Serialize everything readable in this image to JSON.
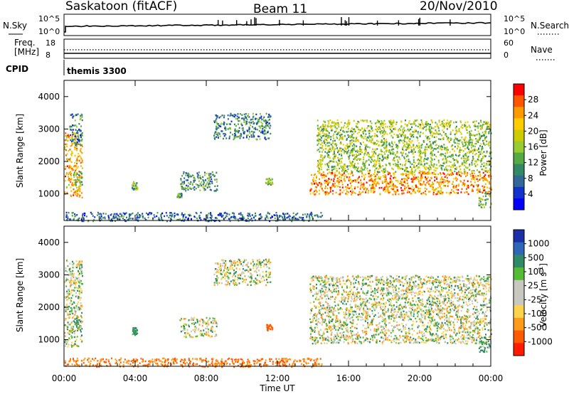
{
  "header": {
    "station": "Saskatoon (fitACF)",
    "beam": "Beam 11",
    "date": "20/Nov/2010"
  },
  "panels": {
    "nsky": {
      "label": "N.Sky",
      "ytick_top": "10^5",
      "ytick_bottom": "10^0",
      "right_top": "10^5",
      "right_bottom": "10^0"
    },
    "nsearch": {
      "label": "N.Search",
      "line_style": "dotted"
    },
    "freq": {
      "label_line1": "Freq.",
      "label_line2": "[MHz]",
      "ytick_top": "18",
      "ytick_bottom": "8",
      "right_top": "60",
      "right_bottom": "0"
    },
    "nave": {
      "label": "Nave",
      "line_style": "dotted"
    },
    "cpid": {
      "label": "CPID",
      "value": "themis 3300"
    }
  },
  "power_panel": {
    "ylabel": "Slant Range [km]",
    "yticks": [
      "4000",
      "3000",
      "2000",
      "1000"
    ],
    "colorbar_label": "Power [dB]",
    "colorbar_ticks": [
      "28",
      "24",
      "20",
      "16",
      "12",
      "8",
      "4"
    ],
    "colorbar_colors": [
      "#ff0000",
      "#ff5500",
      "#ff9900",
      "#ffcc00",
      "#cccc00",
      "#99cc33",
      "#55aa44",
      "#338866",
      "#336699",
      "#1133cc",
      "#0000ff"
    ]
  },
  "velocity_panel": {
    "ylabel": "Slant Range [km]",
    "yticks": [
      "4000",
      "3000",
      "2000",
      "1000"
    ],
    "colorbar_label": "Velocity [m s",
    "colorbar_label_sup": "-1",
    "colorbar_label_end": "]",
    "colorbar_ticks": [
      "1000",
      "500",
      "100",
      "25",
      "-25",
      "-100",
      "-500",
      "-1000"
    ],
    "colorbar_colors": [
      "#1a2fa8",
      "#2f67b8",
      "#2f8a66",
      "#55bb33",
      "#c8c8c0",
      "#c8c8c0",
      "#ffd24d",
      "#ff9a1a",
      "#ff5a00",
      "#ff1a00"
    ]
  },
  "xaxis": {
    "ticks": [
      "00:00",
      "04:00",
      "08:00",
      "12:00",
      "16:00",
      "20:00",
      "00:00"
    ],
    "label": "Time UT"
  },
  "chart_data": {
    "type": "heatmap",
    "title": "Saskatoon (fitACF)",
    "xlabel": "Time UT",
    "ylabel": "Slant Range [km]",
    "xlim": [
      0,
      24
    ],
    "ylim": [
      180,
      4500
    ],
    "x_unit": "hours UT",
    "series": [
      {
        "name": "Power [dB]",
        "blobs": [
          {
            "t0": 0.0,
            "t1": 1.0,
            "r0": 900,
            "r1": 2900,
            "level": 22
          },
          {
            "t0": 0.3,
            "t1": 1.0,
            "r0": 2500,
            "r1": 3500,
            "level": 8
          },
          {
            "t0": 0.5,
            "t1": 1.0,
            "r0": 1300,
            "r1": 1700,
            "level": 12
          },
          {
            "t0": 3.8,
            "t1": 4.1,
            "r0": 1150,
            "r1": 1400,
            "level": 12
          },
          {
            "t0": 6.3,
            "t1": 6.6,
            "r0": 900,
            "r1": 1050,
            "level": 10
          },
          {
            "t0": 6.5,
            "t1": 8.6,
            "r0": 1100,
            "r1": 1700,
            "level": 10
          },
          {
            "t0": 8.4,
            "t1": 11.6,
            "r0": 2700,
            "r1": 3500,
            "level": 9
          },
          {
            "t0": 11.3,
            "t1": 11.7,
            "r0": 1300,
            "r1": 1500,
            "level": 14
          },
          {
            "t0": 13.8,
            "t1": 24.0,
            "r0": 1000,
            "r1": 1700,
            "level": 24
          },
          {
            "t0": 14.2,
            "t1": 24.0,
            "r0": 1700,
            "r1": 3300,
            "level": 15
          },
          {
            "t0": 23.3,
            "t1": 24.0,
            "r0": 600,
            "r1": 1100,
            "level": 12
          },
          {
            "t0": 0.0,
            "t1": 14.5,
            "r0": 180,
            "r1": 450,
            "level": 7
          }
        ]
      },
      {
        "name": "Velocity [m/s]",
        "blobs": [
          {
            "t0": 0.0,
            "t1": 1.0,
            "r0": 800,
            "r1": 3500,
            "level": 0
          },
          {
            "t0": 0.5,
            "t1": 1.0,
            "r0": 1300,
            "r1": 1700,
            "level": 100
          },
          {
            "t0": 3.8,
            "t1": 4.1,
            "r0": 1150,
            "r1": 1400,
            "level": 100
          },
          {
            "t0": 6.5,
            "t1": 8.6,
            "r0": 1100,
            "r1": 1700,
            "level": 0
          },
          {
            "t0": 8.4,
            "t1": 11.6,
            "r0": 2700,
            "r1": 3500,
            "level": 0
          },
          {
            "t0": 11.3,
            "t1": 11.7,
            "r0": 1300,
            "r1": 1500,
            "level": -300
          },
          {
            "t0": 13.8,
            "t1": 24.0,
            "r0": 900,
            "r1": 3000,
            "level": 0
          },
          {
            "t0": 23.3,
            "t1": 24.0,
            "r0": 600,
            "r1": 1100,
            "level": 100
          },
          {
            "t0": 0.0,
            "t1": 14.5,
            "r0": 180,
            "r1": 450,
            "level": -200
          }
        ]
      }
    ]
  }
}
